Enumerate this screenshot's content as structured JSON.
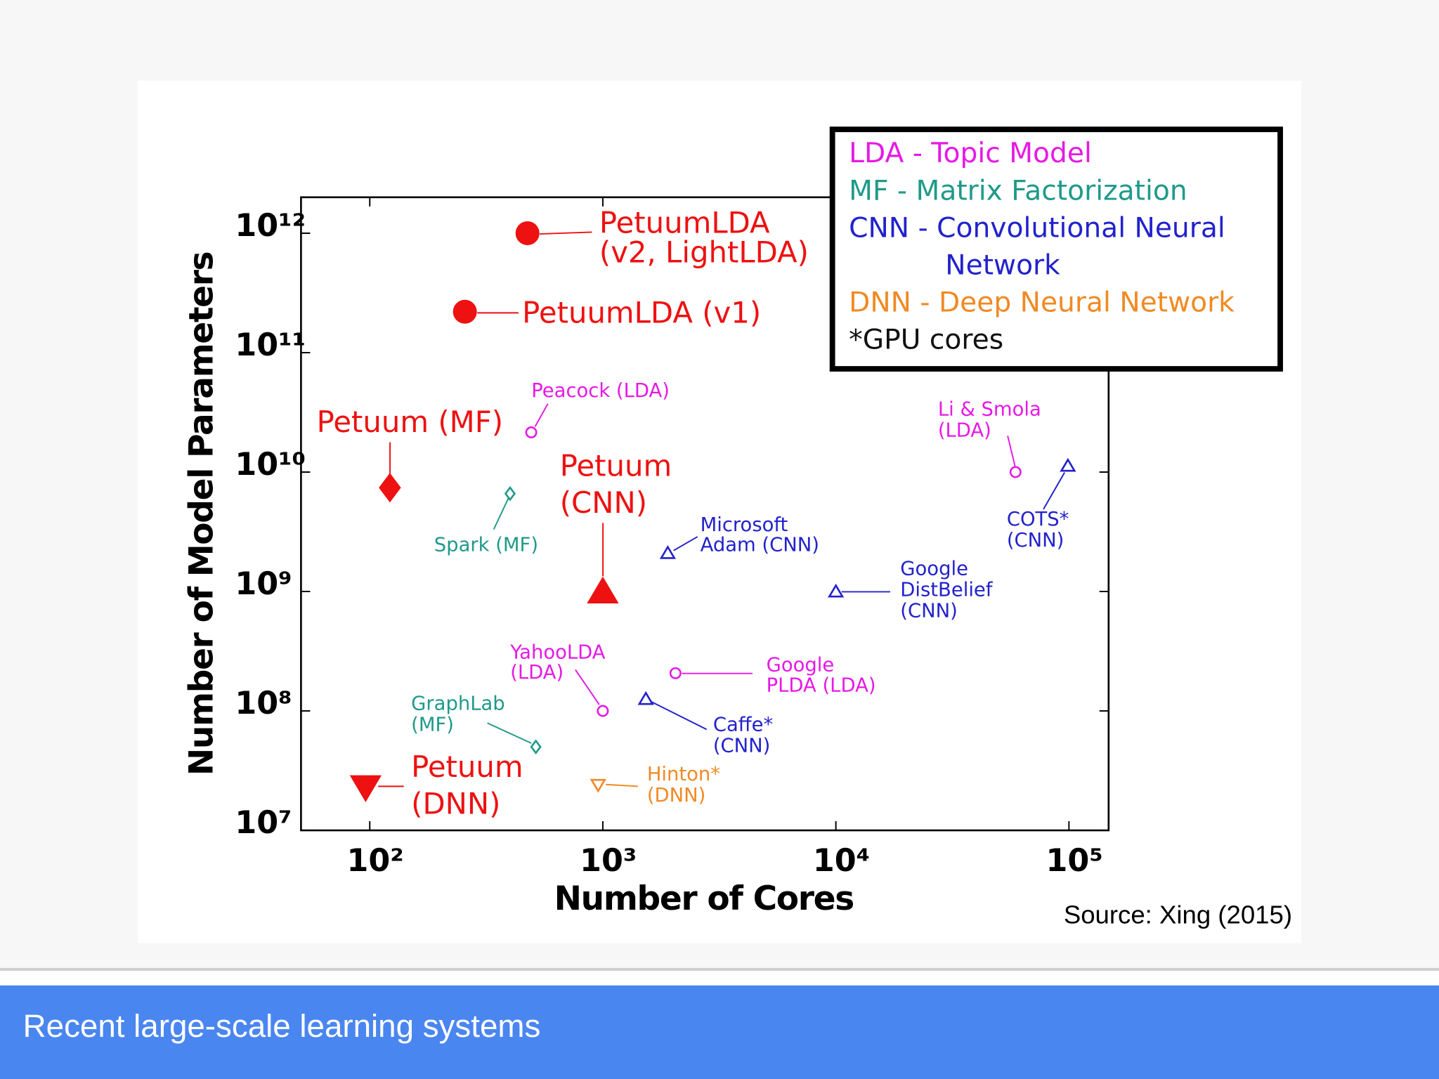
{
  "slide": {
    "footer": "Recent large-scale learning systems",
    "source": "Source: Xing (2015)"
  },
  "chart_data": {
    "type": "scatter",
    "xlabel": "Number of Cores",
    "ylabel": "Number of Model Parameters",
    "xscale": "log",
    "yscale": "log",
    "xlim": [
      50.7,
      148000
    ],
    "ylim": [
      10000000,
      2000000000000
    ],
    "xticks": [
      {
        "value": 100,
        "label": "10²"
      },
      {
        "value": 1000,
        "label": "10³"
      },
      {
        "value": 10000,
        "label": "10⁴"
      },
      {
        "value": 100000,
        "label": "10⁵"
      }
    ],
    "yticks": [
      {
        "value": 10000000,
        "label": "10⁷"
      },
      {
        "value": 100000000,
        "label": "10⁸"
      },
      {
        "value": 1000000000,
        "label": "10⁹"
      },
      {
        "value": 10000000000,
        "label": "10¹⁰"
      },
      {
        "value": 100000000000,
        "label": "10¹¹"
      },
      {
        "value": 1000000000000,
        "label": "10¹²"
      }
    ],
    "legend": [
      {
        "lines": [
          "LDA - Topic Model"
        ],
        "color": "#e619e6"
      },
      {
        "lines": [
          "MF - Matrix Factorization"
        ],
        "color": "#1f9a8a"
      },
      {
        "lines": [
          "CNN - Convolutional Neural",
          "Network"
        ],
        "color": "#2222cc"
      },
      {
        "lines": [
          "DNN - Deep Neural Network"
        ],
        "color": "#f08a24"
      },
      {
        "lines": [
          "*GPU cores"
        ],
        "color": "#111111"
      }
    ],
    "points": [
      {
        "label": [
          "PetuumLDA",
          "(v2, LightLDA)"
        ],
        "x": 475,
        "y": 1000000000000,
        "marker": "circle",
        "filled": true,
        "color": "#ee1111"
      },
      {
        "label": [
          "PetuumLDA (v1)"
        ],
        "x": 256,
        "y": 220000000000,
        "marker": "circle",
        "filled": true,
        "color": "#ee1111"
      },
      {
        "label": [
          "Petuum (MF)"
        ],
        "x": 122,
        "y": 7400000000,
        "marker": "diamond",
        "filled": true,
        "color": "#ee1111"
      },
      {
        "label": [
          "Petuum",
          "(CNN)"
        ],
        "x": 1000,
        "y": 1000000000,
        "marker": "triangle-up",
        "filled": true,
        "color": "#ee1111"
      },
      {
        "label": [
          "Petuum",
          "(DNN)"
        ],
        "x": 96,
        "y": 23000000,
        "marker": "triangle-down",
        "filled": true,
        "color": "#ee1111"
      },
      {
        "label": [
          "Peacock (LDA)"
        ],
        "x": 493,
        "y": 21500000000,
        "marker": "circle",
        "filled": false,
        "color": "#e619e6"
      },
      {
        "label": [
          "Spark (MF)"
        ],
        "x": 400,
        "y": 6600000000,
        "marker": "diamond",
        "filled": false,
        "color": "#1f9a8a"
      },
      {
        "label": [
          "Microsoft",
          "Adam (CNN)"
        ],
        "x": 1900,
        "y": 2100000000,
        "marker": "triangle-up",
        "filled": false,
        "color": "#2222cc"
      },
      {
        "label": [
          "Google",
          "DistBelief",
          "(CNN)"
        ],
        "x": 10000,
        "y": 1000000000,
        "marker": "triangle-up",
        "filled": false,
        "color": "#2222cc"
      },
      {
        "label": [
          "COTS*",
          "(CNN)"
        ],
        "x": 99000,
        "y": 11300000000,
        "marker": "triangle-up",
        "filled": false,
        "color": "#2222cc"
      },
      {
        "label": [
          "Li & Smola",
          "(LDA)"
        ],
        "x": 59000,
        "y": 10000000000,
        "marker": "circle",
        "filled": false,
        "color": "#e619e6"
      },
      {
        "label": [
          "Google",
          "PLDA (LDA)"
        ],
        "x": 2050,
        "y": 207000000,
        "marker": "circle",
        "filled": false,
        "color": "#e619e6"
      },
      {
        "label": [
          "YahooLDA",
          "(LDA)"
        ],
        "x": 1000,
        "y": 100000000,
        "marker": "circle",
        "filled": false,
        "color": "#e619e6"
      },
      {
        "label": [
          "Caffe*",
          "(CNN)"
        ],
        "x": 1530,
        "y": 126000000,
        "marker": "triangle-up",
        "filled": false,
        "color": "#2222cc"
      },
      {
        "label": [
          "GraphLab",
          "(MF)"
        ],
        "x": 516,
        "y": 50000000,
        "marker": "diamond",
        "filled": false,
        "color": "#1f9a8a"
      },
      {
        "label": [
          "Hinton*",
          "(DNN)"
        ],
        "x": 955,
        "y": 24000000,
        "marker": "triangle-down",
        "filled": false,
        "color": "#f08a24"
      }
    ]
  }
}
